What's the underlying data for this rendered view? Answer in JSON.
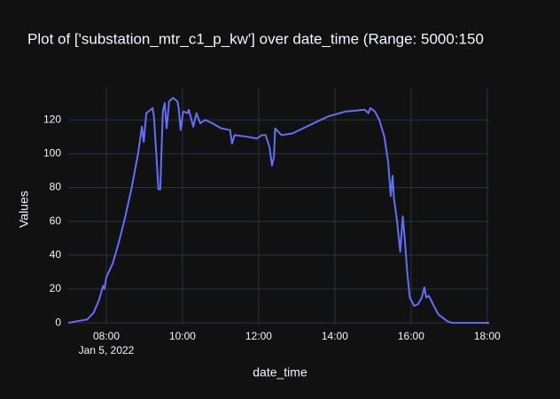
{
  "chart_data": {
    "type": "line",
    "title": "Plot of ['substation_mtr_c1_p_kw'] over date_time (Range: 5000:150",
    "x_label": "date_time",
    "y_label": "Values",
    "x": [
      "2022-01-05 07:00",
      "2022-01-05 07:15",
      "2022-01-05 07:30",
      "2022-01-05 07:40",
      "2022-01-05 07:48",
      "2022-01-05 07:52",
      "2022-01-05 07:55",
      "2022-01-05 07:57",
      "2022-01-05 08:00",
      "2022-01-05 08:10",
      "2022-01-05 08:20",
      "2022-01-05 08:30",
      "2022-01-05 08:40",
      "2022-01-05 08:50",
      "2022-01-05 08:56",
      "2022-01-05 08:59",
      "2022-01-05 09:03",
      "2022-01-05 09:13",
      "2022-01-05 09:15",
      "2022-01-05 09:20",
      "2022-01-05 09:22",
      "2022-01-05 09:25",
      "2022-01-05 09:29",
      "2022-01-05 09:32",
      "2022-01-05 09:35",
      "2022-01-05 09:39",
      "2022-01-05 09:45",
      "2022-01-05 09:52",
      "2022-01-05 09:54",
      "2022-01-05 09:57",
      "2022-01-05 10:01",
      "2022-01-05 10:08",
      "2022-01-05 10:10",
      "2022-01-05 10:17",
      "2022-01-05 10:22",
      "2022-01-05 10:28",
      "2022-01-05 10:36",
      "2022-01-05 10:47",
      "2022-01-05 11:01",
      "2022-01-05 11:15",
      "2022-01-05 11:18",
      "2022-01-05 11:22",
      "2022-01-05 11:43",
      "2022-01-05 11:57",
      "2022-01-05 12:05",
      "2022-01-05 12:11",
      "2022-01-05 12:17",
      "2022-01-05 12:21",
      "2022-01-05 12:24",
      "2022-01-05 12:26",
      "2022-01-05 12:36",
      "2022-01-05 12:53",
      "2022-01-05 13:21",
      "2022-01-05 13:49",
      "2022-01-05 14:17",
      "2022-01-05 14:47",
      "2022-01-05 14:53",
      "2022-01-05 14:56",
      "2022-01-05 15:03",
      "2022-01-05 15:10",
      "2022-01-05 15:18",
      "2022-01-05 15:24",
      "2022-01-05 15:28",
      "2022-01-05 15:31",
      "2022-01-05 15:33",
      "2022-01-05 15:38",
      "2022-01-05 15:43",
      "2022-01-05 15:47",
      "2022-01-05 15:50",
      "2022-01-05 15:54",
      "2022-01-05 15:58",
      "2022-01-05 16:05",
      "2022-01-05 16:11",
      "2022-01-05 16:17",
      "2022-01-05 16:21",
      "2022-01-05 16:24",
      "2022-01-05 16:28",
      "2022-01-05 16:36",
      "2022-01-05 16:43",
      "2022-01-05 16:57",
      "2022-01-05 17:04",
      "2022-01-05 18:03"
    ],
    "series": [
      {
        "name": "substation_mtr_c1_p_kw",
        "color": "#636efa",
        "values": [
          0,
          1,
          2,
          6,
          13,
          18,
          22,
          20,
          27,
          35,
          48,
          63,
          80,
          100,
          116,
          107,
          124,
          127,
          122,
          92,
          79,
          79,
          125,
          130,
          115,
          131,
          133,
          131,
          127,
          114,
          125,
          124,
          126,
          116,
          124,
          118,
          120,
          118,
          115,
          114,
          106,
          111,
          110,
          109,
          111,
          111,
          104,
          93,
          98,
          115,
          111,
          112,
          117,
          122,
          125,
          126,
          124,
          127,
          125,
          120,
          110,
          95,
          75,
          87,
          74,
          60,
          42,
          63,
          50,
          30,
          15,
          10,
          11,
          15,
          21,
          15,
          16,
          10,
          5,
          1,
          0,
          0
        ]
      }
    ],
    "xlim": [
      "2022-01-05 07:00",
      "2022-01-05 18:03"
    ],
    "xticks": [
      {
        "value": "2022-01-05 08:00",
        "label": "08:00"
      },
      {
        "value": "2022-01-05 10:00",
        "label": "10:00"
      },
      {
        "value": "2022-01-05 12:00",
        "label": "12:00"
      },
      {
        "value": "2022-01-05 14:00",
        "label": "14:00"
      },
      {
        "value": "2022-01-05 16:00",
        "label": "16:00"
      },
      {
        "value": "2022-01-05 18:00",
        "label": "18:00"
      }
    ],
    "xtick_sublabel": "Jan 5, 2022",
    "ylim": [
      -1,
      139
    ],
    "yticks": [
      0,
      20,
      40,
      60,
      80,
      100,
      120
    ],
    "grid": true
  }
}
